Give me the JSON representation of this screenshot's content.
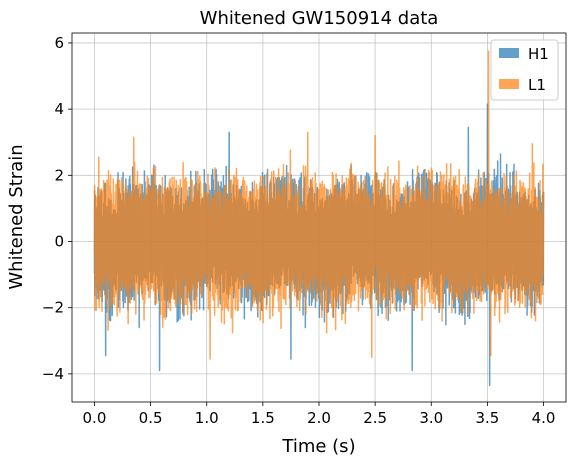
{
  "chart_data": {
    "type": "line",
    "title": "Whitened GW150914 data",
    "xlabel": "Time (s)",
    "ylabel": "Whitened Strain",
    "xlim": [
      -0.2,
      4.2
    ],
    "ylim": [
      -4.85,
      6.3
    ],
    "grid": true,
    "legend_position": "top-right",
    "xticks": [
      0.0,
      0.5,
      1.0,
      1.5,
      2.0,
      2.5,
      3.0,
      3.5,
      4.0
    ],
    "xtick_labels": [
      "0.0",
      "0.5",
      "1.0",
      "1.5",
      "2.0",
      "2.5",
      "3.0",
      "3.5",
      "4.0"
    ],
    "yticks": [
      -4,
      -2,
      0,
      2,
      4,
      6
    ],
    "ytick_labels": [
      "−4",
      "−2",
      "0",
      "2",
      "4",
      "6"
    ],
    "series": [
      {
        "name": "H1",
        "color": "#1f77b4",
        "opacity": 0.7,
        "x_range": [
          0.0,
          4.0
        ],
        "typical_amplitude": 2.3,
        "extremes": [
          {
            "x": 0.1,
            "y": -3.45
          },
          {
            "x": 0.58,
            "y": -3.9
          },
          {
            "x": 1.2,
            "y": 3.3
          },
          {
            "x": 1.75,
            "y": -3.55
          },
          {
            "x": 2.83,
            "y": -3.9
          },
          {
            "x": 3.33,
            "y": 3.45
          },
          {
            "x": 3.5,
            "y": 4.15
          },
          {
            "x": 3.52,
            "y": -4.35
          }
        ]
      },
      {
        "name": "L1",
        "color": "#ff7f0e",
        "opacity": 0.7,
        "x_range": [
          0.0,
          4.0
        ],
        "typical_amplitude": 2.4,
        "extremes": [
          {
            "x": 0.35,
            "y": 3.15
          },
          {
            "x": 1.03,
            "y": -3.55
          },
          {
            "x": 1.9,
            "y": 3.3
          },
          {
            "x": 2.5,
            "y": 3.2
          },
          {
            "x": 2.47,
            "y": -3.5
          },
          {
            "x": 3.51,
            "y": 5.75
          },
          {
            "x": 3.53,
            "y": -3.45
          },
          {
            "x": 3.9,
            "y": 2.95
          }
        ]
      }
    ]
  }
}
